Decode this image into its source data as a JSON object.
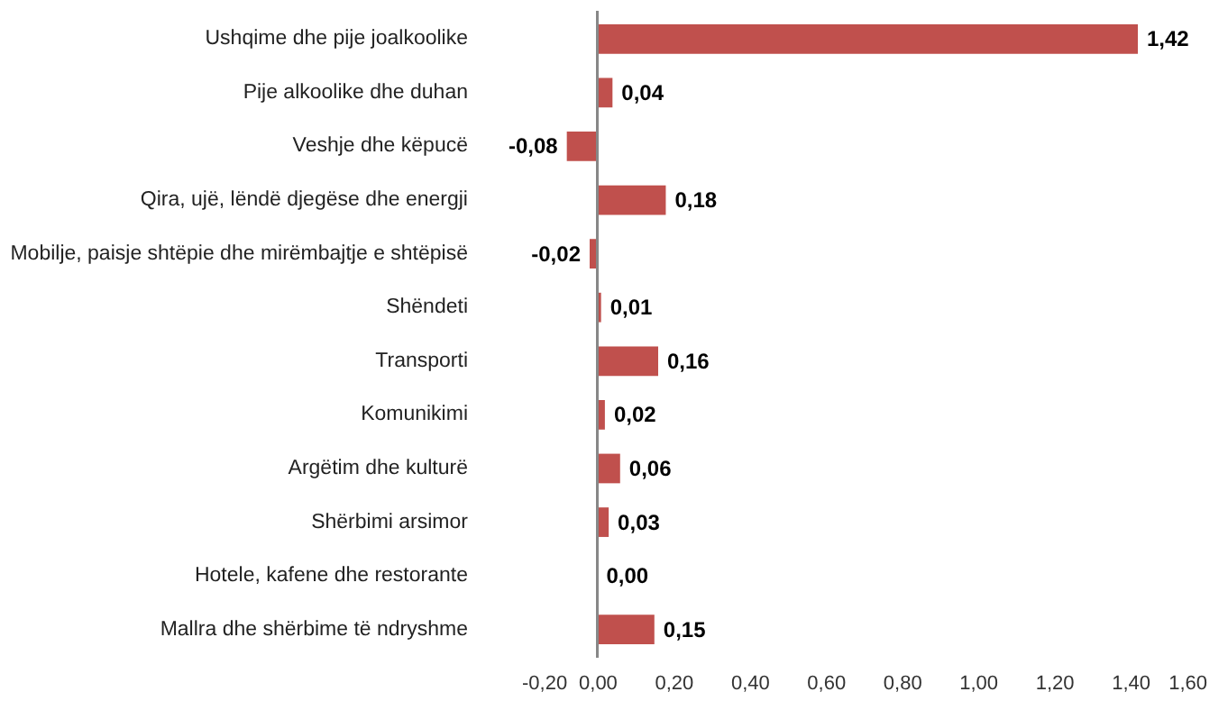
{
  "chart_data": {
    "type": "bar",
    "orientation": "horizontal",
    "categories": [
      "Ushqime dhe pije joalkoolike",
      "Pije alkoolike dhe duhan",
      "Veshje dhe këpucë",
      "Qira, ujë, lëndë djegëse dhe energji",
      "Mobilje, paisje shtëpie dhe mirëmbajtje e shtëpisë",
      "Shëndeti",
      "Transporti",
      "Komunikimi",
      "Argëtim dhe kulturë",
      "Shërbimi arsimor",
      "Hotele, kafene dhe restorante",
      "Mallra dhe shërbime të ndryshme"
    ],
    "values": [
      1.42,
      0.04,
      -0.08,
      0.18,
      -0.02,
      0.01,
      0.16,
      0.02,
      0.06,
      0.03,
      0.0,
      0.15
    ],
    "value_labels": [
      "1,42",
      "0,04",
      "-0,08",
      "0,18",
      "-0,02",
      "0,01",
      "0,16",
      "0,02",
      "0,06",
      "0,03",
      "0,00",
      "0,15"
    ],
    "color": "#c0504d",
    "xlim": [
      -0.2,
      1.6
    ],
    "xticks": [
      {
        "value": -0.2,
        "label": "-0,20"
      },
      {
        "value": 0,
        "label": "0,00"
      },
      {
        "value": 0.2,
        "label": "0,20"
      },
      {
        "value": 0.4,
        "label": "0,40"
      },
      {
        "value": 0.6,
        "label": "0,60"
      },
      {
        "value": 0.8,
        "label": "0,80"
      },
      {
        "value": 1.0,
        "label": "1,00"
      },
      {
        "value": 1.2,
        "label": "1,20"
      },
      {
        "value": 1.4,
        "label": "1,40"
      },
      {
        "value": 1.6,
        "label": "1,60"
      }
    ],
    "grid": false,
    "ref_lines": [
      {
        "axis": "x",
        "value": 0,
        "color": "#888888"
      }
    ]
  }
}
